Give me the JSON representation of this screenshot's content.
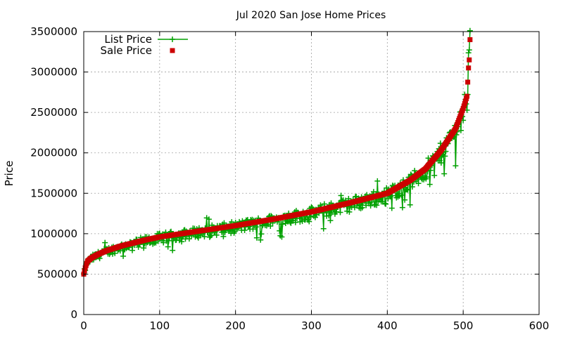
{
  "chart_data": {
    "type": "line",
    "title": "Jul 2020 San Jose Home Prices",
    "xlabel": "",
    "ylabel": "Price",
    "xlim": [
      0,
      600
    ],
    "ylim": [
      0,
      3500000
    ],
    "xticks": [
      "0",
      "100",
      "200",
      "300",
      "400",
      "500",
      "600"
    ],
    "yticks": [
      "0",
      "500000",
      "1000000",
      "1500000",
      "2000000",
      "2500000",
      "3000000",
      "3500000"
    ],
    "grid": true,
    "legend": "top-left",
    "n_points": 510,
    "sale_curve_keypoints": [
      [
        0,
        500000
      ],
      [
        2,
        580000
      ],
      [
        5,
        660000
      ],
      [
        10,
        700000
      ],
      [
        20,
        750000
      ],
      [
        30,
        790000
      ],
      [
        50,
        850000
      ],
      [
        80,
        920000
      ],
      [
        100,
        960000
      ],
      [
        150,
        1030000
      ],
      [
        200,
        1100000
      ],
      [
        250,
        1180000
      ],
      [
        300,
        1270000
      ],
      [
        350,
        1380000
      ],
      [
        400,
        1500000
      ],
      [
        430,
        1660000
      ],
      [
        450,
        1800000
      ],
      [
        470,
        2020000
      ],
      [
        490,
        2300000
      ],
      [
        500,
        2550000
      ],
      [
        505,
        2700000
      ],
      [
        507,
        3050000
      ],
      [
        508,
        3150000
      ],
      [
        509,
        3400000
      ]
    ],
    "series": [
      {
        "name": "List Price",
        "color": "#00a000",
        "style": "line-with-plus-markers"
      },
      {
        "name": "Sale Price",
        "color": "#cc0000",
        "style": "square-markers"
      }
    ]
  }
}
